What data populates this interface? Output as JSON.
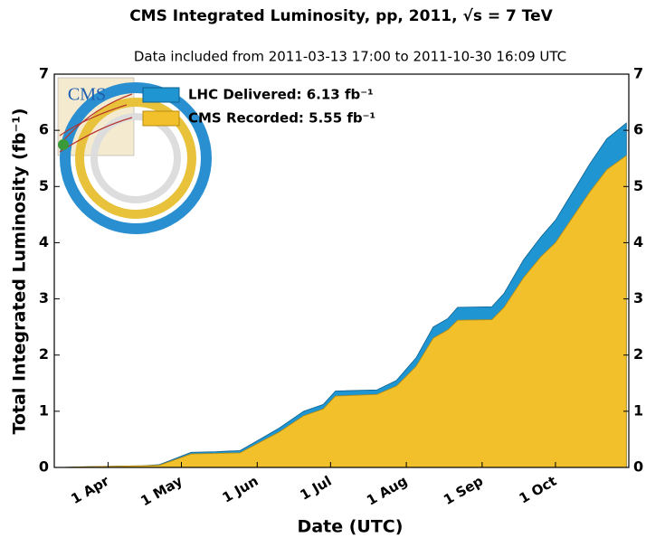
{
  "chart_data": {
    "type": "area",
    "title": "CMS Integrated Luminosity, pp, 2011, √s = 7 TeV",
    "subtitle": "Data included from 2011-03-13 17:00 to 2011-10-30 16:09 UTC",
    "logo": "CMS",
    "x_label": "Date (UTC)",
    "y_label": "Total Integrated Luminosity (fb⁻¹)",
    "x": [
      "2011-03-13",
      "2011-03-20",
      "2011-04-01",
      "2011-04-15",
      "2011-04-22",
      "2011-04-28",
      "2011-05-05",
      "2011-05-15",
      "2011-05-25",
      "2011-05-31",
      "2011-06-10",
      "2011-06-20",
      "2011-06-28",
      "2011-07-03",
      "2011-07-20",
      "2011-07-28",
      "2011-08-05",
      "2011-08-12",
      "2011-08-18",
      "2011-08-22",
      "2011-09-05",
      "2011-09-10",
      "2011-09-18",
      "2011-09-25",
      "2011-10-01",
      "2011-10-08",
      "2011-10-15",
      "2011-10-22",
      "2011-10-30"
    ],
    "series": [
      {
        "name": "LHC Delivered: 6.13 fb⁻¹",
        "color": "#1f96d2",
        "values": [
          0,
          0.01,
          0.02,
          0.03,
          0.05,
          0.15,
          0.27,
          0.28,
          0.3,
          0.45,
          0.7,
          1.0,
          1.12,
          1.36,
          1.38,
          1.55,
          1.95,
          2.5,
          2.65,
          2.85,
          2.86,
          3.1,
          3.7,
          4.1,
          4.4,
          4.9,
          5.4,
          5.85,
          6.13
        ]
      },
      {
        "name": "CMS Recorded: 5.55 fb⁻¹",
        "color": "#f1c02a",
        "values": [
          0,
          0.01,
          0.02,
          0.03,
          0.04,
          0.13,
          0.24,
          0.25,
          0.26,
          0.4,
          0.63,
          0.92,
          1.04,
          1.27,
          1.3,
          1.45,
          1.8,
          2.3,
          2.45,
          2.62,
          2.63,
          2.85,
          3.38,
          3.75,
          4.0,
          4.45,
          4.9,
          5.3,
          5.55
        ]
      }
    ],
    "xlim": [
      "2011-03-10",
      "2011-10-31"
    ],
    "xticks": [
      {
        "value": "2011-04-01",
        "label": "1 Apr"
      },
      {
        "value": "2011-05-01",
        "label": "1 May"
      },
      {
        "value": "2011-06-01",
        "label": "1 Jun"
      },
      {
        "value": "2011-07-01",
        "label": "1 Jul"
      },
      {
        "value": "2011-08-01",
        "label": "1 Aug"
      },
      {
        "value": "2011-09-01",
        "label": "1 Sep"
      },
      {
        "value": "2011-10-01",
        "label": "1 Oct"
      }
    ],
    "ylim": [
      0,
      7
    ],
    "yticks": [
      0,
      1,
      2,
      3,
      4,
      5,
      6,
      7
    ],
    "legend": "upper left"
  }
}
